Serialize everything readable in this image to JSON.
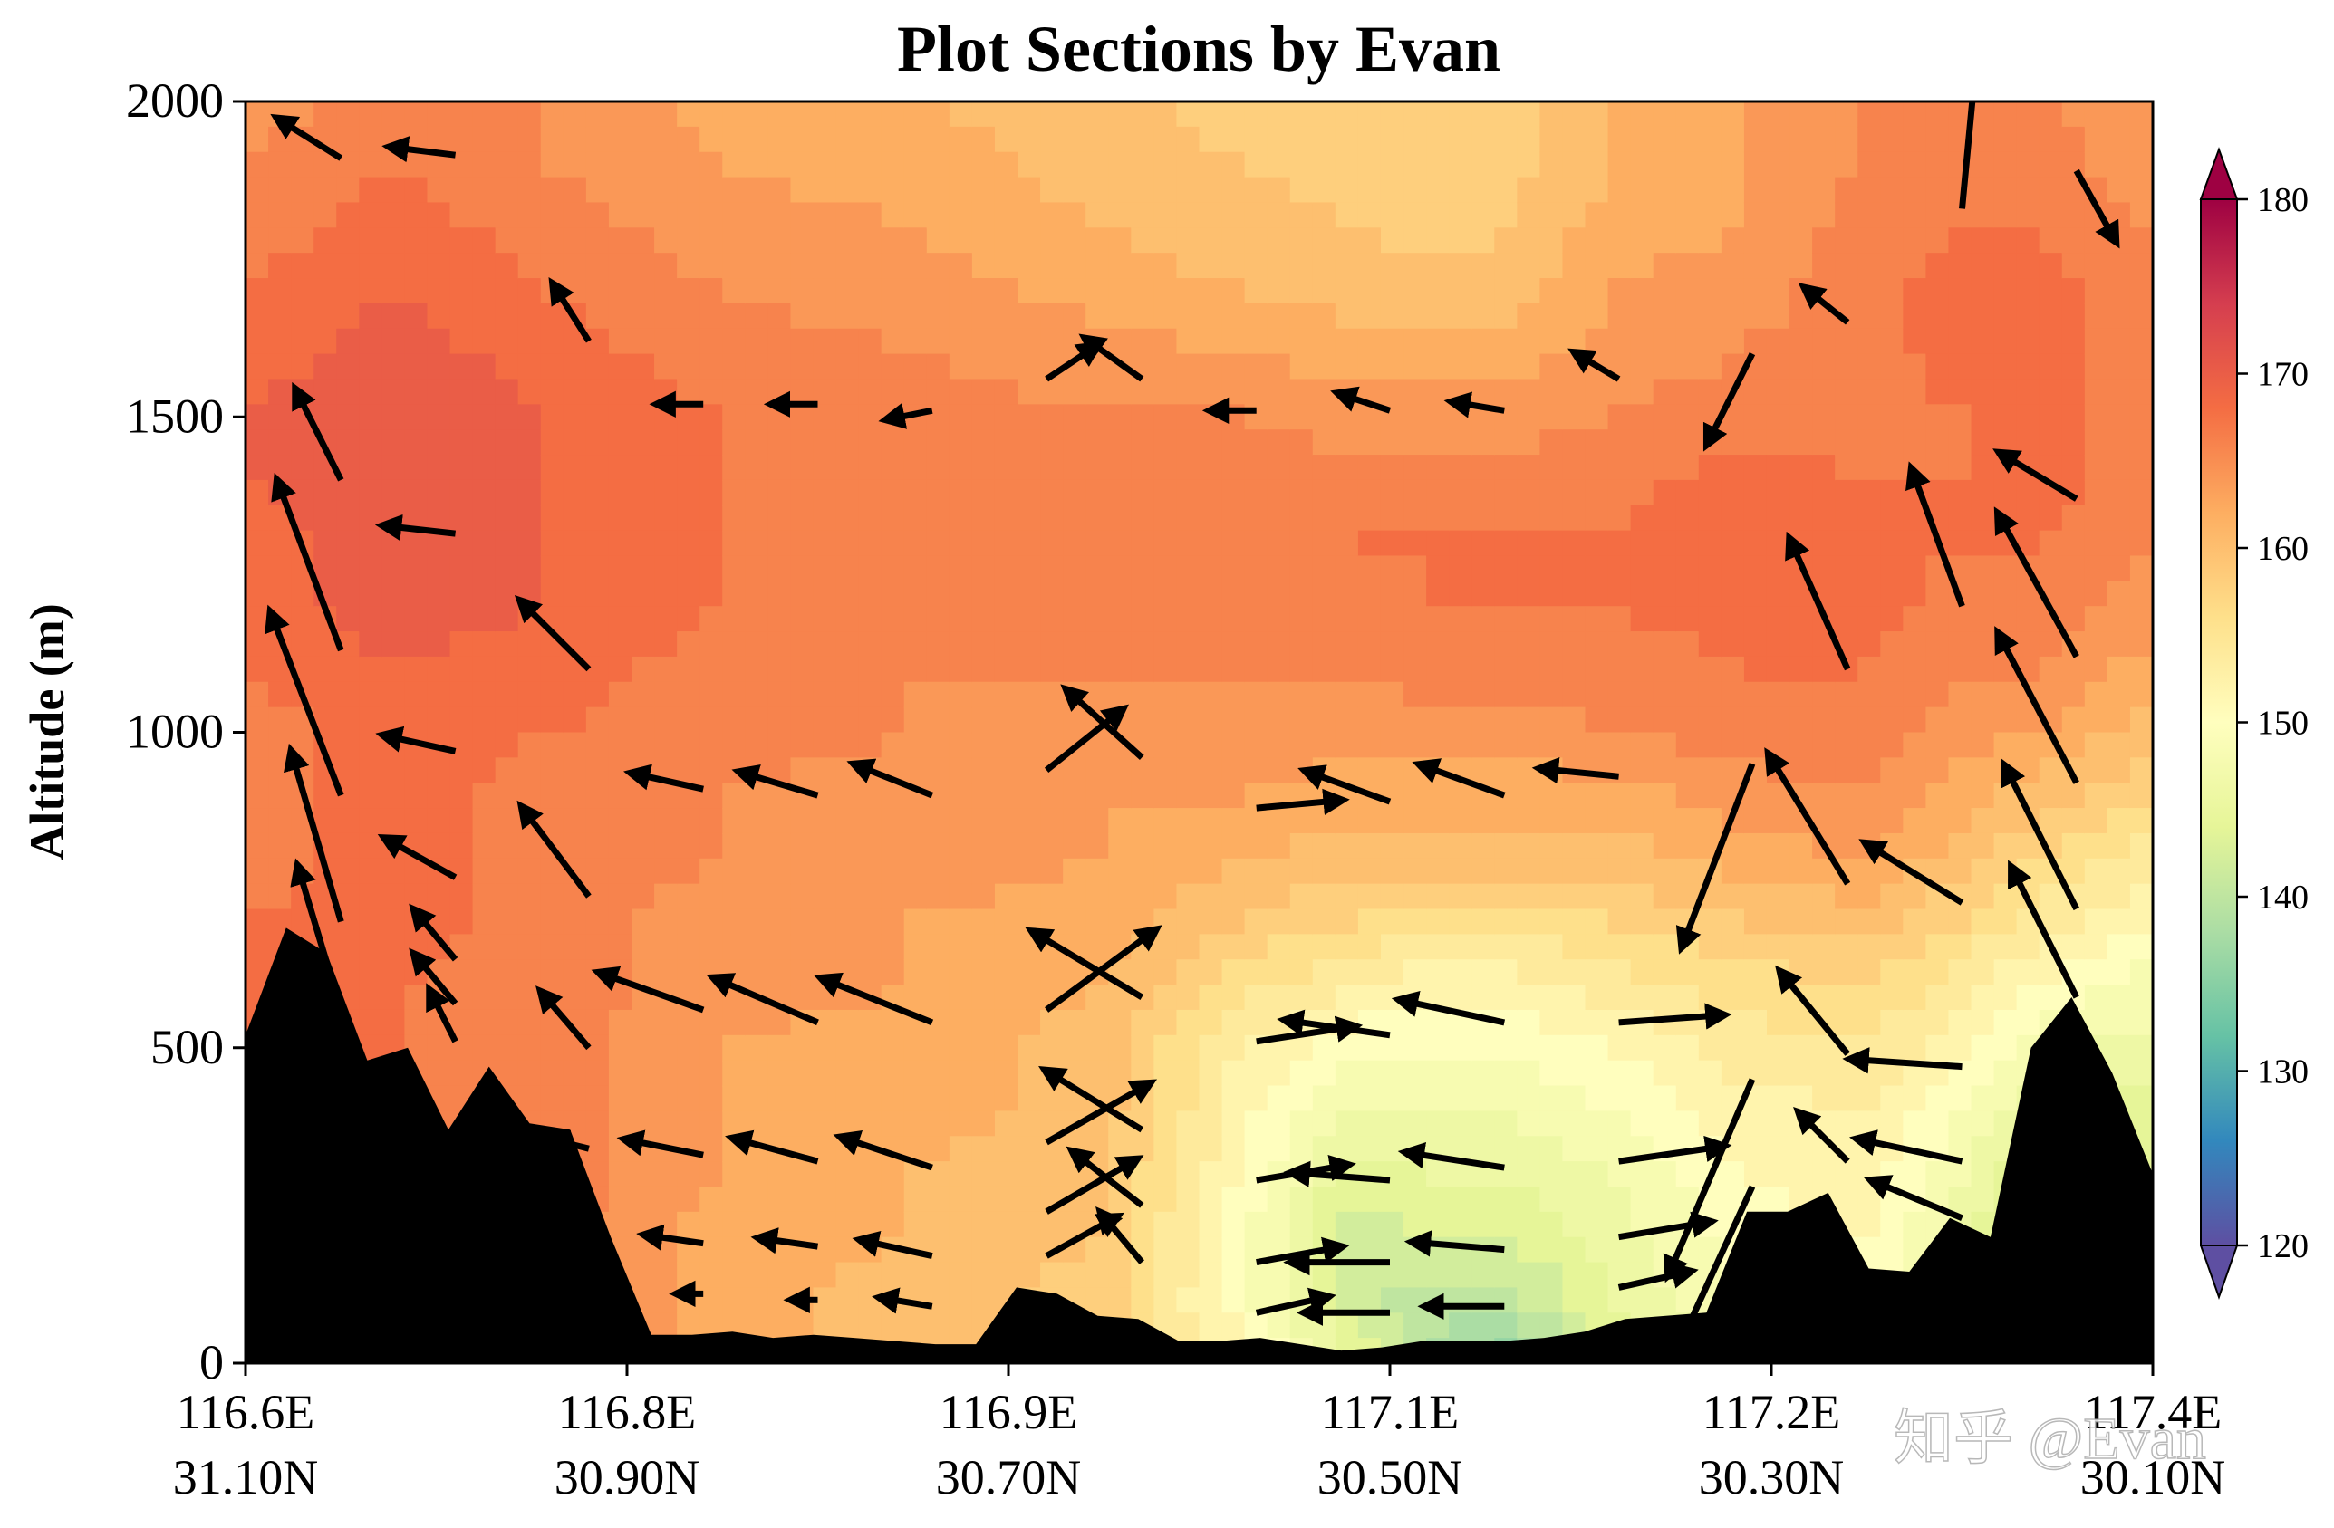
{
  "chart_data": {
    "type": "contour",
    "title": "Plot Sections by Evan",
    "xlabel": "",
    "ylabel": "Altitude (m)",
    "ylim": [
      0,
      2000
    ],
    "yticks": [
      0,
      500,
      1000,
      1500,
      2000
    ],
    "xticks": [
      {
        "lon": "116.6E",
        "lat": "31.10N"
      },
      {
        "lon": "116.8E",
        "lat": "30.90N"
      },
      {
        "lon": "116.9E",
        "lat": "30.70N"
      },
      {
        "lon": "117.1E",
        "lat": "30.50N"
      },
      {
        "lon": "117.2E",
        "lat": "30.30N"
      },
      {
        "lon": "117.4E",
        "lat": "30.10N"
      }
    ],
    "colorbar": {
      "ticks": [
        120,
        130,
        140,
        150,
        160,
        170,
        180
      ],
      "range": [
        120,
        180
      ],
      "extend": "both",
      "colormap": "Spectral_r"
    },
    "grid": false,
    "terrain_height": [
      520,
      690,
      650,
      480,
      500,
      370,
      470,
      380,
      370,
      200,
      45,
      45,
      50,
      40,
      45,
      40,
      35,
      30,
      30,
      120,
      110,
      75,
      70,
      35,
      35,
      40,
      30,
      20,
      25,
      35,
      35,
      35,
      40,
      50,
      70,
      75,
      80,
      240,
      240,
      270,
      150,
      145,
      230,
      200,
      500,
      580,
      460,
      300
    ],
    "field_profiles": {
      "heights": [
        0,
        100,
        200,
        300,
        400,
        500,
        600,
        700,
        800,
        900,
        1000,
        1100,
        1200,
        1300,
        1400,
        1500,
        1600,
        1700,
        1800,
        1900,
        2000
      ],
      "columns": [
        {
          "x": 0.0,
          "values": [
            168,
            168,
            167,
            167,
            167,
            167,
            167,
            167,
            166,
            166,
            166,
            167,
            168,
            168,
            169,
            169,
            168,
            167,
            166,
            165,
            164
          ]
        },
        {
          "x": 0.08,
          "values": [
            167,
            167,
            167,
            167,
            167,
            167,
            167,
            168,
            168,
            168,
            168,
            169,
            170,
            170,
            171,
            171,
            170,
            169,
            168,
            167,
            166
          ]
        },
        {
          "x": 0.16,
          "values": [
            166,
            166,
            166,
            166,
            166,
            166,
            166,
            166,
            166,
            166,
            167,
            168,
            169,
            169,
            169,
            169,
            168,
            167,
            166,
            165,
            165
          ]
        },
        {
          "x": 0.25,
          "values": [
            162,
            162,
            162,
            163,
            163,
            163,
            164,
            164,
            165,
            165,
            166,
            166,
            167,
            167,
            167,
            167,
            166,
            165,
            164,
            163,
            162
          ]
        },
        {
          "x": 0.35,
          "values": [
            160,
            160,
            161,
            161,
            162,
            162,
            163,
            163,
            164,
            164,
            165,
            165,
            166,
            166,
            166,
            166,
            165,
            164,
            163,
            162,
            161
          ]
        },
        {
          "x": 0.45,
          "values": [
            158,
            158,
            159,
            159,
            160,
            160,
            161,
            162,
            163,
            163,
            164,
            165,
            165,
            166,
            166,
            165,
            164,
            162,
            161,
            160,
            160
          ]
        },
        {
          "x": 0.52,
          "values": [
            152,
            150,
            150,
            151,
            152,
            153,
            156,
            159,
            161,
            163,
            164,
            165,
            166,
            166,
            166,
            165,
            163,
            161,
            160,
            159,
            158
          ]
        },
        {
          "x": 0.58,
          "values": [
            145,
            142,
            142,
            144,
            147,
            150,
            153,
            157,
            160,
            162,
            164,
            165,
            166,
            167,
            166,
            164,
            162,
            160,
            159,
            158,
            158
          ]
        },
        {
          "x": 0.62,
          "values": [
            138,
            140,
            143,
            145,
            147,
            149,
            152,
            156,
            160,
            162,
            164,
            166,
            167,
            167,
            166,
            164,
            162,
            160,
            158,
            157,
            157
          ]
        },
        {
          "x": 0.66,
          "values": [
            136,
            140,
            143,
            145,
            147,
            149,
            152,
            156,
            160,
            162,
            164,
            166,
            167,
            167,
            166,
            164,
            162,
            160,
            159,
            158,
            158
          ]
        },
        {
          "x": 0.72,
          "values": [
            144,
            145,
            146,
            147,
            149,
            151,
            154,
            157,
            160,
            162,
            165,
            166,
            167,
            167,
            166,
            165,
            164,
            163,
            162,
            161,
            161
          ]
        },
        {
          "x": 0.78,
          "values": [
            148,
            149,
            150,
            151,
            152,
            154,
            156,
            159,
            162,
            164,
            166,
            167,
            168,
            169,
            168,
            166,
            165,
            164,
            163,
            163,
            163
          ]
        },
        {
          "x": 0.85,
          "values": [
            150,
            150,
            151,
            152,
            153,
            155,
            157,
            160,
            163,
            165,
            166,
            167,
            168,
            168,
            167,
            166,
            166,
            166,
            166,
            165,
            165
          ]
        },
        {
          "x": 0.9,
          "values": [
            144,
            145,
            146,
            147,
            149,
            151,
            154,
            157,
            160,
            162,
            164,
            165,
            166,
            167,
            167,
            167,
            168,
            168,
            167,
            166,
            165
          ]
        },
        {
          "x": 0.94,
          "values": [
            140,
            141,
            141,
            143,
            145,
            148,
            151,
            154,
            157,
            160,
            163,
            165,
            166,
            167,
            168,
            168,
            168,
            168,
            167,
            166,
            165
          ]
        },
        {
          "x": 1.0,
          "values": [
            142,
            142,
            142,
            143,
            144,
            146,
            148,
            151,
            154,
            157,
            160,
            162,
            164,
            165,
            166,
            166,
            166,
            166,
            165,
            164,
            164
          ]
        }
      ]
    },
    "wind_vectors": [
      {
        "x": 0.05,
        "y": 1910,
        "u": -0.4,
        "v": 0.25
      },
      {
        "x": 0.11,
        "y": 1915,
        "u": -0.4,
        "v": 0.05
      },
      {
        "x": 0.18,
        "y": 1620,
        "u": -0.22,
        "v": 0.35
      },
      {
        "x": 0.05,
        "y": 1400,
        "u": -0.3,
        "v": 0.6
      },
      {
        "x": 0.11,
        "y": 1315,
        "u": -0.45,
        "v": 0.05
      },
      {
        "x": 0.05,
        "y": 1130,
        "u": -0.45,
        "v": 1.2
      },
      {
        "x": 0.05,
        "y": 900,
        "u": -0.5,
        "v": 1.3
      },
      {
        "x": 0.05,
        "y": 700,
        "u": -0.35,
        "v": 1.2
      },
      {
        "x": 0.05,
        "y": 560,
        "u": -0.3,
        "v": 1.0
      },
      {
        "x": 0.11,
        "y": 970,
        "u": -0.45,
        "v": 0.1
      },
      {
        "x": 0.11,
        "y": 770,
        "u": -0.45,
        "v": 0.25
      },
      {
        "x": 0.11,
        "y": 640,
        "u": -0.25,
        "v": 0.3
      },
      {
        "x": 0.11,
        "y": 570,
        "u": -0.25,
        "v": 0.3
      },
      {
        "x": 0.11,
        "y": 510,
        "u": -0.15,
        "v": 0.3
      },
      {
        "x": 0.18,
        "y": 1100,
        "u": -0.45,
        "v": 0.45
      },
      {
        "x": 0.18,
        "y": 740,
        "u": -0.45,
        "v": 0.6
      },
      {
        "x": 0.18,
        "y": 500,
        "u": -0.3,
        "v": 0.35
      },
      {
        "x": 0.18,
        "y": 340,
        "u": -0.2,
        "v": 0.05
      },
      {
        "x": 0.18,
        "y": 200,
        "u": -0.1,
        "v": 0.0
      },
      {
        "x": 0.24,
        "y": 1520,
        "u": -0.25,
        "v": 0.0
      },
      {
        "x": 0.24,
        "y": 910,
        "u": -0.45,
        "v": 0.1
      },
      {
        "x": 0.24,
        "y": 560,
        "u": -0.7,
        "v": 0.25
      },
      {
        "x": 0.24,
        "y": 330,
        "u": -0.5,
        "v": 0.1
      },
      {
        "x": 0.24,
        "y": 190,
        "u": -0.35,
        "v": 0.05
      },
      {
        "x": 0.24,
        "y": 110,
        "u": -0.1,
        "v": 0.0
      },
      {
        "x": 0.3,
        "y": 1520,
        "u": -0.25,
        "v": 0.0
      },
      {
        "x": 0.3,
        "y": 900,
        "u": -0.5,
        "v": 0.15
      },
      {
        "x": 0.3,
        "y": 540,
        "u": -0.7,
        "v": 0.3
      },
      {
        "x": 0.3,
        "y": 320,
        "u": -0.55,
        "v": 0.15
      },
      {
        "x": 0.3,
        "y": 185,
        "u": -0.35,
        "v": 0.05
      },
      {
        "x": 0.3,
        "y": 100,
        "u": -0.1,
        "v": 0.0
      },
      {
        "x": 0.36,
        "y": 1510,
        "u": -0.25,
        "v": -0.05
      },
      {
        "x": 0.36,
        "y": 900,
        "u": -0.5,
        "v": 0.2
      },
      {
        "x": 0.36,
        "y": 540,
        "u": -0.75,
        "v": 0.3
      },
      {
        "x": 0.36,
        "y": 310,
        "u": -0.6,
        "v": 0.2
      },
      {
        "x": 0.36,
        "y": 170,
        "u": -0.45,
        "v": 0.1
      },
      {
        "x": 0.36,
        "y": 90,
        "u": -0.3,
        "v": 0.05
      },
      {
        "x": 0.42,
        "y": 1560,
        "u": 0.3,
        "v": 0.2
      },
      {
        "x": 0.42,
        "y": 940,
        "u": 0.5,
        "v": 0.4
      },
      {
        "x": 0.42,
        "y": 560,
        "u": 0.75,
        "v": 0.55
      },
      {
        "x": 0.42,
        "y": 350,
        "u": 0.7,
        "v": 0.4
      },
      {
        "x": 0.42,
        "y": 240,
        "u": 0.6,
        "v": 0.35
      },
      {
        "x": 0.42,
        "y": 170,
        "u": 0.45,
        "v": 0.25
      },
      {
        "x": 0.47,
        "y": 1560,
        "u": -0.35,
        "v": 0.25
      },
      {
        "x": 0.47,
        "y": 960,
        "u": -0.5,
        "v": 0.45
      },
      {
        "x": 0.47,
        "y": 580,
        "u": -0.75,
        "v": 0.45
      },
      {
        "x": 0.47,
        "y": 370,
        "u": -0.65,
        "v": 0.4
      },
      {
        "x": 0.47,
        "y": 250,
        "u": -0.45,
        "v": 0.35
      },
      {
        "x": 0.47,
        "y": 160,
        "u": -0.25,
        "v": 0.3
      },
      {
        "x": 0.53,
        "y": 1510,
        "u": -0.25,
        "v": 0.0
      },
      {
        "x": 0.53,
        "y": 880,
        "u": 0.55,
        "v": 0.05
      },
      {
        "x": 0.53,
        "y": 510,
        "u": 0.65,
        "v": 0.1
      },
      {
        "x": 0.53,
        "y": 290,
        "u": 0.6,
        "v": 0.1
      },
      {
        "x": 0.53,
        "y": 160,
        "u": 0.55,
        "v": 0.1
      },
      {
        "x": 0.53,
        "y": 80,
        "u": 0.45,
        "v": 0.1
      },
      {
        "x": 0.6,
        "y": 1510,
        "u": -0.3,
        "v": 0.1
      },
      {
        "x": 0.6,
        "y": 890,
        "u": -0.55,
        "v": 0.2
      },
      {
        "x": 0.6,
        "y": 520,
        "u": -0.7,
        "v": 0.1
      },
      {
        "x": 0.6,
        "y": 290,
        "u": -0.65,
        "v": 0.05
      },
      {
        "x": 0.6,
        "y": 160,
        "u": -0.65,
        "v": 0.0
      },
      {
        "x": 0.6,
        "y": 80,
        "u": -0.55,
        "v": 0.0
      },
      {
        "x": 0.66,
        "y": 1510,
        "u": -0.3,
        "v": 0.05
      },
      {
        "x": 0.66,
        "y": 900,
        "u": -0.55,
        "v": 0.2
      },
      {
        "x": 0.66,
        "y": 540,
        "u": -0.7,
        "v": 0.15
      },
      {
        "x": 0.66,
        "y": 310,
        "u": -0.65,
        "v": 0.1
      },
      {
        "x": 0.66,
        "y": 180,
        "u": -0.6,
        "v": 0.05
      },
      {
        "x": 0.66,
        "y": 90,
        "u": -0.5,
        "v": 0.0
      },
      {
        "x": 0.72,
        "y": 1560,
        "u": -0.25,
        "v": 0.15
      },
      {
        "x": 0.72,
        "y": 930,
        "u": -0.5,
        "v": 0.05
      },
      {
        "x": 0.72,
        "y": 540,
        "u": 0.7,
        "v": 0.05
      },
      {
        "x": 0.72,
        "y": 320,
        "u": 0.7,
        "v": 0.1
      },
      {
        "x": 0.72,
        "y": 200,
        "u": 0.6,
        "v": 0.1
      },
      {
        "x": 0.72,
        "y": 120,
        "u": 0.45,
        "v": 0.1
      },
      {
        "x": 0.79,
        "y": 1600,
        "u": -0.3,
        "v": -0.6
      },
      {
        "x": 0.79,
        "y": 950,
        "u": -0.5,
        "v": -1.3
      },
      {
        "x": 0.79,
        "y": 450,
        "u": -0.6,
        "v": -1.4
      },
      {
        "x": 0.79,
        "y": 280,
        "u": -0.55,
        "v": -1.2
      },
      {
        "x": 0.79,
        "y": 200,
        "u": -0.45,
        "v": -1.0
      },
      {
        "x": 0.79,
        "y": 180,
        "u": -0.3,
        "v": -0.6
      },
      {
        "x": 0.84,
        "y": 1650,
        "u": -0.25,
        "v": 0.2
      },
      {
        "x": 0.84,
        "y": 1100,
        "u": -0.4,
        "v": 0.9
      },
      {
        "x": 0.84,
        "y": 760,
        "u": -0.55,
        "v": 0.9
      },
      {
        "x": 0.84,
        "y": 490,
        "u": -0.45,
        "v": 0.55
      },
      {
        "x": 0.84,
        "y": 320,
        "u": -0.3,
        "v": 0.3
      },
      {
        "x": 0.84,
        "y": 200,
        "u": -0.2,
        "v": 0.15
      },
      {
        "x": 0.9,
        "y": 1830,
        "u": 0.1,
        "v": 1.05
      },
      {
        "x": 0.9,
        "y": 1200,
        "u": -0.35,
        "v": 0.95
      },
      {
        "x": 0.9,
        "y": 730,
        "u": -0.65,
        "v": 0.4
      },
      {
        "x": 0.9,
        "y": 470,
        "u": -0.75,
        "v": 0.05
      },
      {
        "x": 0.9,
        "y": 320,
        "u": -0.7,
        "v": 0.15
      },
      {
        "x": 0.9,
        "y": 230,
        "u": -0.6,
        "v": 0.25
      },
      {
        "x": 0.96,
        "y": 1890,
        "u": 0.25,
        "v": -0.45
      },
      {
        "x": 0.96,
        "y": 1370,
        "u": -0.5,
        "v": 0.3
      },
      {
        "x": 0.96,
        "y": 1120,
        "u": -0.55,
        "v": 1.0
      },
      {
        "x": 0.96,
        "y": 920,
        "u": -0.55,
        "v": 1.05
      },
      {
        "x": 0.96,
        "y": 720,
        "u": -0.5,
        "v": 1.0
      },
      {
        "x": 0.96,
        "y": 580,
        "u": -0.45,
        "v": 0.9
      }
    ]
  },
  "watermark": {
    "text": "知乎 @Evan"
  }
}
